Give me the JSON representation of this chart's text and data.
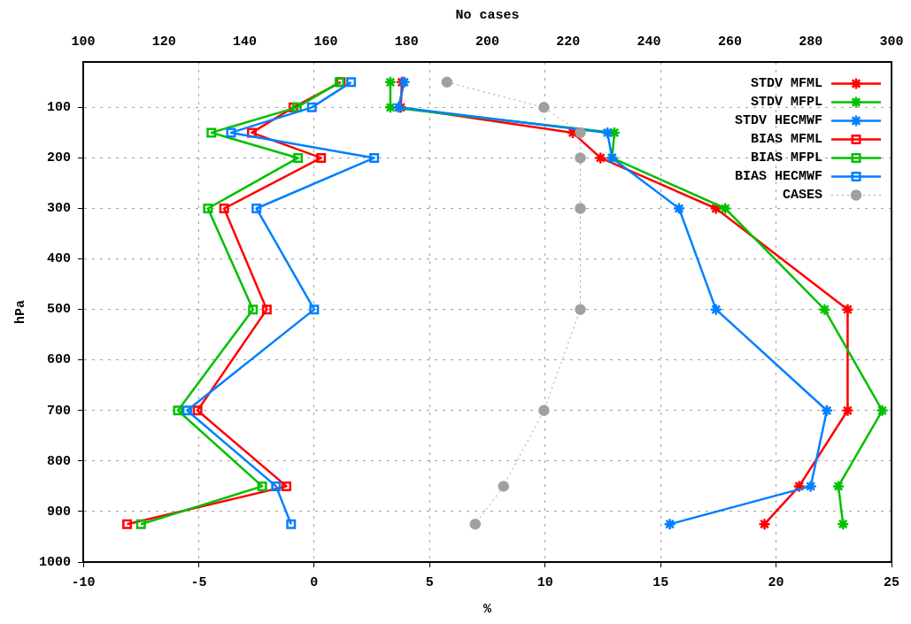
{
  "chart_data": {
    "type": "line",
    "xlabel": "%",
    "ylabel": "hPa",
    "x2label": "No cases",
    "xlim": [
      -10,
      25
    ],
    "xticks": [
      -10,
      -5,
      0,
      5,
      10,
      15,
      20,
      25
    ],
    "x2lim": [
      100,
      300
    ],
    "x2ticks": [
      100,
      120,
      140,
      160,
      180,
      200,
      220,
      240,
      260,
      280,
      300
    ],
    "ylim": [
      1000,
      10
    ],
    "yticks": [
      100,
      200,
      300,
      400,
      500,
      600,
      700,
      800,
      900,
      1000
    ],
    "grid": true,
    "legend": "top right",
    "line_style": "solid",
    "series": [
      {
        "name": "STDV MFML",
        "color": "#ff0000",
        "marker": "cross",
        "x": [
          3.8,
          3.75,
          11.2,
          12.4,
          17.4,
          23.1,
          23.1,
          21.0,
          19.5
        ],
        "values": [
          50,
          100,
          150,
          200,
          300,
          500,
          700,
          850,
          925
        ]
      },
      {
        "name": "STDV MFPL",
        "color": "#00c000",
        "marker": "cross",
        "x": [
          3.3,
          3.3,
          13.0,
          12.9,
          17.8,
          22.1,
          24.6,
          22.7,
          22.9
        ],
        "values": [
          50,
          100,
          150,
          200,
          300,
          500,
          700,
          850,
          925
        ]
      },
      {
        "name": "STDV HECMWF",
        "color": "#0080ff",
        "marker": "cross",
        "x": [
          3.9,
          3.65,
          12.7,
          12.9,
          15.8,
          17.4,
          22.2,
          21.5,
          15.4
        ],
        "values": [
          50,
          100,
          150,
          200,
          300,
          500,
          700,
          850,
          925
        ]
      },
      {
        "name": "BIAS MFML",
        "color": "#ff0000",
        "marker": "square",
        "x": [
          1.15,
          -0.9,
          -2.7,
          0.3,
          -3.9,
          -2.05,
          -5.05,
          -1.2,
          -8.1
        ],
        "values": [
          50,
          100,
          150,
          200,
          300,
          500,
          700,
          850,
          925
        ]
      },
      {
        "name": "BIAS MFPL",
        "color": "#00c000",
        "marker": "square",
        "x": [
          1.1,
          -0.75,
          -4.45,
          -0.7,
          -4.6,
          -2.65,
          -5.9,
          -2.25,
          -7.5
        ],
        "values": [
          50,
          100,
          150,
          200,
          300,
          500,
          700,
          850,
          925
        ]
      },
      {
        "name": "BIAS HECMWF",
        "color": "#0080ff",
        "marker": "square",
        "x": [
          1.6,
          -0.1,
          -3.6,
          2.6,
          -2.5,
          0,
          -5.5,
          -1.65,
          -1.0
        ],
        "values": [
          50,
          100,
          150,
          200,
          300,
          500,
          700,
          850,
          925
        ]
      },
      {
        "name": "CASES",
        "color": "#a0a0a0",
        "marker": "circle",
        "line_style": "dotted",
        "axis": "x2",
        "x": [
          190,
          214,
          223,
          223,
          223,
          223,
          214,
          204,
          197
        ],
        "values": [
          50,
          100,
          150,
          200,
          300,
          500,
          700,
          850,
          925
        ]
      }
    ]
  }
}
